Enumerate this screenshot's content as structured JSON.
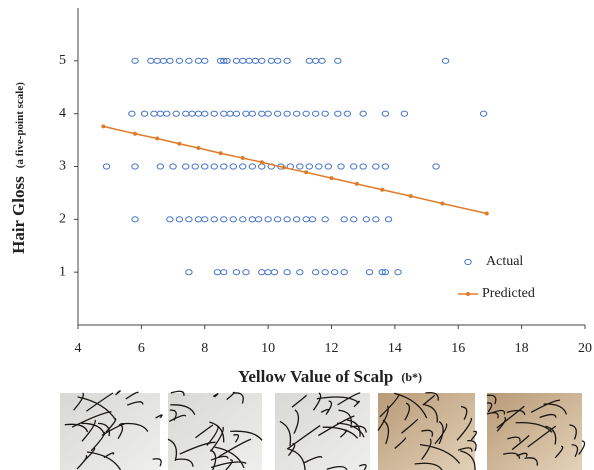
{
  "chart_data": {
    "type": "scatter",
    "x_label": "Yellow Value of Scalp",
    "x_label_note": "(b*)",
    "y_label": "Hair Gloss",
    "y_label_note": "(a five-point scale)",
    "xlim": [
      4,
      20
    ],
    "xticks": [
      4,
      6,
      8,
      10,
      12,
      14,
      16,
      18,
      20
    ],
    "ylim": [
      0,
      6
    ],
    "yticks": [
      1,
      2,
      3,
      4,
      5
    ],
    "legend": "lower-right",
    "series": [
      {
        "name": "Actual",
        "color": "#4472c4",
        "x": [
          5.8,
          6.3,
          6.5,
          6.7,
          6.9,
          7.2,
          7.5,
          7.8,
          8.0,
          8.5,
          8.6,
          8.7,
          9.0,
          9.2,
          9.4,
          9.6,
          9.8,
          10.1,
          10.3,
          10.6,
          11.3,
          11.5,
          11.7,
          12.2,
          15.6,
          5.7,
          6.1,
          6.4,
          6.6,
          6.8,
          7.1,
          7.4,
          7.6,
          7.8,
          8.0,
          8.3,
          8.6,
          8.8,
          9.0,
          9.3,
          9.5,
          9.8,
          10.0,
          10.3,
          10.6,
          10.9,
          11.2,
          11.5,
          11.8,
          12.2,
          12.5,
          13.0,
          13.7,
          14.3,
          16.8,
          4.9,
          5.8,
          6.6,
          7.0,
          7.4,
          7.7,
          8.0,
          8.3,
          8.6,
          8.9,
          9.2,
          9.5,
          9.8,
          10.1,
          10.4,
          10.7,
          11.0,
          11.3,
          11.6,
          11.9,
          12.3,
          12.7,
          13.0,
          13.4,
          13.7,
          15.3,
          5.8,
          6.9,
          7.2,
          7.5,
          7.8,
          8.0,
          8.3,
          8.6,
          8.9,
          9.2,
          9.5,
          9.7,
          10.0,
          10.3,
          10.6,
          10.9,
          11.2,
          11.4,
          11.8,
          12.4,
          12.7,
          13.1,
          13.4,
          13.8,
          7.5,
          8.4,
          8.6,
          9.0,
          9.3,
          9.8,
          10.0,
          10.2,
          10.6,
          11.0,
          11.5,
          11.8,
          12.1,
          12.4,
          13.2,
          13.6,
          13.7,
          14.1
        ],
        "values": [
          5,
          5,
          5,
          5,
          5,
          5,
          5,
          5,
          5,
          5,
          5,
          5,
          5,
          5,
          5,
          5,
          5,
          5,
          5,
          5,
          5,
          5,
          5,
          5,
          5,
          4,
          4,
          4,
          4,
          4,
          4,
          4,
          4,
          4,
          4,
          4,
          4,
          4,
          4,
          4,
          4,
          4,
          4,
          4,
          4,
          4,
          4,
          4,
          4,
          4,
          4,
          4,
          4,
          4,
          4,
          3,
          3,
          3,
          3,
          3,
          3,
          3,
          3,
          3,
          3,
          3,
          3,
          3,
          3,
          3,
          3,
          3,
          3,
          3,
          3,
          3,
          3,
          3,
          3,
          3,
          3,
          2,
          2,
          2,
          2,
          2,
          2,
          2,
          2,
          2,
          2,
          2,
          2,
          2,
          2,
          2,
          2,
          2,
          2,
          2,
          2,
          2,
          2,
          2,
          2,
          1,
          1,
          1,
          1,
          1,
          1,
          1,
          1,
          1,
          1,
          1,
          1,
          1,
          1,
          1,
          1,
          1,
          1
        ]
      },
      {
        "name": "Predicted",
        "color": "#e07b2a",
        "x": [
          4.8,
          5.8,
          6.5,
          7.2,
          7.8,
          8.5,
          9.2,
          9.8,
          10.5,
          11.2,
          12.0,
          12.8,
          13.6,
          14.5,
          15.5,
          16.9
        ],
        "values": [
          3.76,
          3.62,
          3.53,
          3.43,
          3.35,
          3.25,
          3.16,
          3.08,
          2.98,
          2.89,
          2.78,
          2.67,
          2.56,
          2.44,
          2.3,
          2.11
        ]
      }
    ]
  }
}
